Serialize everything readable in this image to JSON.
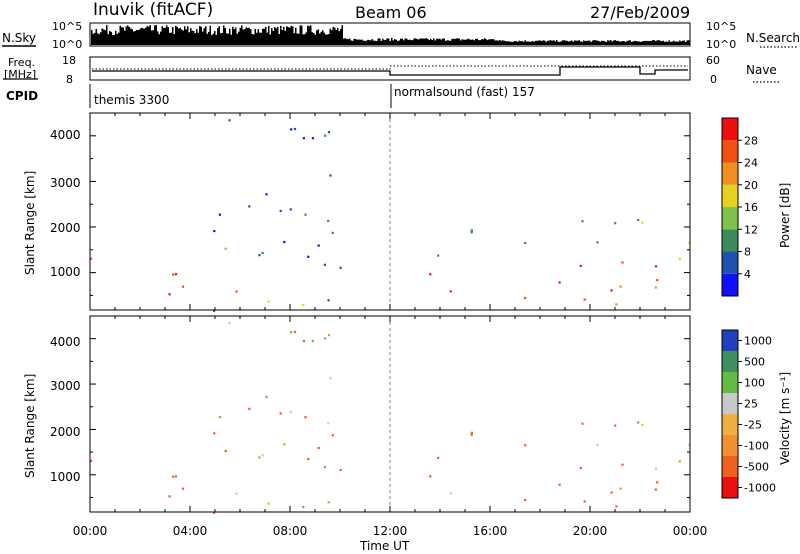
{
  "header": {
    "station": "Inuvik (fitACF)",
    "beam": "Beam 06",
    "date": "27/Feb/2009"
  },
  "noise_panel": {
    "left_label": "N.Sky",
    "right_label": "N.Search",
    "left_ticks": [
      "10^5",
      "10^0"
    ],
    "right_ticks": [
      "10^5",
      "10^0"
    ]
  },
  "freq_panel": {
    "left_label_line1": "Freq.",
    "left_label_line2": "[MHz]",
    "right_label": "Nave",
    "left_ticks": [
      "18",
      "8"
    ],
    "right_ticks": [
      "60",
      "0"
    ]
  },
  "cpid": {
    "label": "CPID",
    "segments": [
      "themis 3300",
      "normalsound (fast) 157"
    ]
  },
  "power_panel": {
    "ylabel": "Slant Range [km]",
    "yticks": [
      "4000",
      "3000",
      "2000",
      "1000"
    ],
    "colorbar_label": "Power [dB]",
    "colorbar_ticks": [
      "28",
      "24",
      "20",
      "16",
      "12",
      "8",
      "4"
    ]
  },
  "velocity_panel": {
    "ylabel": "Slant Range [km]",
    "yticks": [
      "4000",
      "3000",
      "2000",
      "1000"
    ],
    "colorbar_label": "Velocity [m s⁻¹]",
    "colorbar_ticks": [
      "1000",
      "500",
      "100",
      "25",
      "-25",
      "-100",
      "-500",
      "-1000"
    ]
  },
  "xaxis": {
    "label": "Time UT",
    "ticks": [
      "00:00",
      "04:00",
      "08:00",
      "12:00",
      "16:00",
      "20:00",
      "00:00"
    ]
  },
  "chart_data": {
    "type": "heatmap",
    "title": "Inuvik (fitACF)  Beam 06  27/Feb/2009",
    "xlabel": "Time UT",
    "x_range_hours": [
      0,
      24
    ],
    "y_range_km": [
      180,
      4500
    ],
    "cpid_switch_hour": 12.0,
    "power_colorscale": {
      "unit": "dB",
      "levels": [
        4,
        8,
        12,
        16,
        20,
        24,
        28
      ],
      "colors": [
        "#1010ff",
        "#2050b0",
        "#3a8a5a",
        "#7fc24a",
        "#e8d020",
        "#f09020",
        "#f05010",
        "#ee1010"
      ]
    },
    "velocity_colorscale": {
      "unit": "m s-1",
      "levels": [
        1000,
        500,
        100,
        25,
        -25,
        -100,
        -500,
        -1000
      ],
      "colors": [
        "#2040c0",
        "#3f8f60",
        "#66bb44",
        "#c8c8c8",
        "#f0b040",
        "#f09030",
        "#f06020",
        "#e81010"
      ]
    },
    "scatter_regions_km": [
      {
        "t0": 0.0,
        "t1": 4.5,
        "r0": 500,
        "r1": 1400,
        "power_dB": 28,
        "velocity": -300
      },
      {
        "t0": 4.0,
        "t1": 5.5,
        "r0": 900,
        "r1": 1700,
        "power_dB": 20,
        "velocity": -150
      },
      {
        "t0": 4.5,
        "t1": 10.0,
        "r0": 180,
        "r1": 4500,
        "power_dB": 6,
        "velocity": 0
      },
      {
        "t0": 5.5,
        "t1": 11.5,
        "r0": 300,
        "r1": 700,
        "power_dB": 22,
        "velocity": -50
      },
      {
        "t0": 12.0,
        "t1": 24.0,
        "r0": 300,
        "r1": 1300,
        "power_dB": 26,
        "velocity": -200
      },
      {
        "t0": 13.0,
        "t1": 24.0,
        "r0": 1300,
        "r1": 2200,
        "power_dB": 14,
        "velocity": -100
      }
    ]
  }
}
